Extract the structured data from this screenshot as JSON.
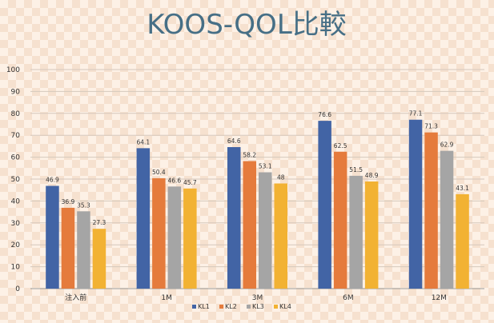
{
  "chart_data": {
    "type": "bar",
    "title": "KOOS-QOL比較",
    "categories": [
      "注入前",
      "1M",
      "3M",
      "6M",
      "12M"
    ],
    "series": [
      {
        "name": "KL1",
        "color": "#4264a5",
        "values": [
          46.9,
          64.1,
          64.6,
          76.6,
          77.1
        ],
        "labels": [
          "46.9",
          "64.1",
          "64.6",
          "76.6",
          "77.1"
        ]
      },
      {
        "name": "KL2",
        "color": "#e57b3c",
        "values": [
          36.9,
          50.4,
          58.2,
          62.5,
          71.3
        ],
        "labels": [
          "36.9",
          "50.4",
          "58.2",
          "62.5",
          "71.3"
        ]
      },
      {
        "name": "KL3",
        "color": "#a5a5a5",
        "values": [
          35.3,
          46.6,
          53.1,
          51.5,
          62.9
        ],
        "labels": [
          "35.3",
          "46.6",
          "53.1",
          "51.5",
          "62.9"
        ]
      },
      {
        "name": "KL4",
        "color": "#f2b233",
        "values": [
          27.3,
          45.7,
          48,
          48.9,
          43.1
        ],
        "labels": [
          "27.3",
          "45.7",
          "48",
          "48.9",
          "43.1"
        ]
      }
    ],
    "yticks": [
      "0",
      "10",
      "20",
      "30",
      "40",
      "50",
      "60",
      "70",
      "80",
      "90",
      "100"
    ],
    "ylim": [
      0,
      100
    ],
    "grid": true,
    "legend_position": "bottom"
  }
}
